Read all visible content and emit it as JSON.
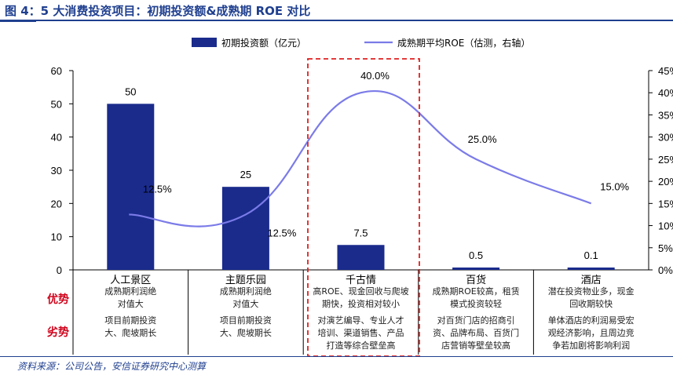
{
  "title": "图 4：5 大消费投资项目：初期投资额&成熟期 ROE 对比",
  "source": "资料来源：公司公告，安信证券研究中心测算",
  "colors": {
    "bar": "#1a2b8c",
    "line": "#7b7be8",
    "highlight": "#e02020",
    "title": "#1f3f8f"
  },
  "chart_data": {
    "type": "bar",
    "categories": [
      "人工景区",
      "主题乐园",
      "千古情",
      "百货",
      "酒店"
    ],
    "series": [
      {
        "name": "初期投资额（亿元）",
        "kind": "bar",
        "axis": "left",
        "values": [
          50,
          25,
          7.5,
          0.5,
          0.1
        ],
        "labels": [
          "50",
          "25",
          "7.5",
          "0.5",
          "0.1"
        ]
      },
      {
        "name": "成熟期平均ROE（估测，右轴）",
        "kind": "line",
        "axis": "right",
        "values": [
          0.125,
          0.125,
          0.4,
          0.25,
          0.15
        ],
        "labels": [
          "12.5%",
          "12.5%",
          "40.0%",
          "25.0%",
          "15.0%"
        ]
      }
    ],
    "y_left": {
      "min": 0,
      "max": 60,
      "ticks": [
        "0",
        "10",
        "20",
        "30",
        "40",
        "50",
        "60"
      ]
    },
    "y_right": {
      "min": 0,
      "max": 0.45,
      "ticks": [
        "0%",
        "5%",
        "10%",
        "15%",
        "20%",
        "25%",
        "30%",
        "35%",
        "40%",
        "45%"
      ]
    },
    "legend_position": "top",
    "highlight_category": "千古情"
  },
  "table": {
    "row_labels": [
      "优势",
      "劣势"
    ],
    "advantages": [
      "成熟期利润绝\n对值大",
      "成熟期利润绝\n对值大",
      "高ROE、现金回收与爬坡\n期快，投资相对较小",
      "成熟期ROE较高，租赁\n模式投资较轻",
      "潜在投资物业多，现金\n回收期较快"
    ],
    "disadvantages": [
      "项目前期投资\n大、爬坡期长",
      "项目前期投资\n大、爬坡期长",
      "对演艺编导、专业人才\n培训、渠道销售、产品\n打造等综合壁垒高",
      "对百货门店的招商引\n资、品牌布局、百货门\n店营销等壁垒较高",
      "单体酒店的利润易受宏\n观经济影响，且周边竞\n争若加剧将影响利润"
    ]
  }
}
